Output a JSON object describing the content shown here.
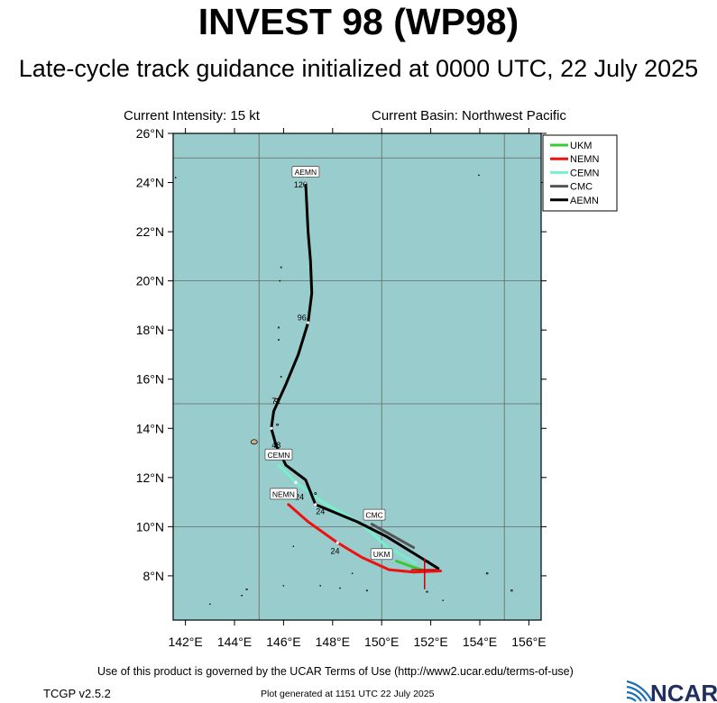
{
  "header": {
    "title": "INVEST 98 (WP98)",
    "subtitle": "Late-cycle track guidance initialized at 0000 UTC, 22 July 2025",
    "current_intensity": "Current Intensity: 15 kt",
    "current_basin": "Current Basin: Northwest Pacific"
  },
  "map": {
    "lat_ticks": [
      "8°N",
      "10°N",
      "12°N",
      "14°N",
      "16°N",
      "18°N",
      "20°N",
      "22°N",
      "24°N",
      "26°N"
    ],
    "lon_ticks": [
      "142°E",
      "144°E",
      "146°E",
      "148°E",
      "150°E",
      "152°E",
      "154°E",
      "156°E"
    ],
    "lat_range": [
      6.2,
      26
    ],
    "lon_range": [
      141.5,
      156.5
    ],
    "ocean_color": "#99cccc"
  },
  "legend": [
    {
      "name": "UKM",
      "color": "#33cc33"
    },
    {
      "name": "NEMN",
      "color": "#ee1111"
    },
    {
      "name": "CEMN",
      "color": "#77eecc"
    },
    {
      "name": "CMC",
      "color": "#555555"
    },
    {
      "name": "AEMN",
      "color": "#000000"
    }
  ],
  "tracks": {
    "AEMN": [
      [
        152.3,
        8.3
      ],
      [
        151.5,
        8.8
      ],
      [
        150.2,
        9.6
      ],
      [
        149,
        10.2
      ],
      [
        147.3,
        10.9
      ],
      [
        146.9,
        11.9
      ],
      [
        146.1,
        12.5
      ],
      [
        145.7,
        13.3
      ],
      [
        145.5,
        14.0
      ],
      [
        145.6,
        14.7
      ],
      [
        146.1,
        15.8
      ],
      [
        146.6,
        17.0
      ],
      [
        147.0,
        18.3
      ],
      [
        147.15,
        19.5
      ],
      [
        147.1,
        20.8
      ],
      [
        147.0,
        22.0
      ],
      [
        146.9,
        24.0
      ]
    ],
    "CEMN": [
      [
        151.4,
        8.5
      ],
      [
        150.2,
        9.2
      ],
      [
        149.2,
        10.1
      ],
      [
        147.6,
        11.0
      ],
      [
        146.5,
        11.8
      ],
      [
        145.8,
        12.5
      ]
    ],
    "NEMN": [
      [
        152.4,
        8.2
      ],
      [
        151.3,
        8.15
      ],
      [
        150.3,
        8.25
      ],
      [
        149.2,
        8.75
      ],
      [
        148.2,
        9.35
      ],
      [
        147.0,
        10.2
      ],
      [
        146.2,
        10.9
      ]
    ],
    "CMC": [
      [
        151.3,
        9.15
      ],
      [
        150.5,
        9.6
      ],
      [
        149.6,
        10.1
      ]
    ],
    "UKM": [
      [
        151.8,
        8.2
      ],
      [
        151.3,
        8.35
      ],
      [
        150.6,
        8.6
      ]
    ]
  },
  "track_labels": [
    {
      "text": "AEMN",
      "lon": 146.9,
      "lat": 24.4
    },
    {
      "text": "CEMN",
      "lon": 145.8,
      "lat": 12.9
    },
    {
      "text": "NEMN",
      "lon": 146.0,
      "lat": 11.3
    },
    {
      "text": "CMC",
      "lon": 149.7,
      "lat": 10.45
    },
    {
      "text": "UKM",
      "lon": 150.0,
      "lat": 8.85
    }
  ],
  "hour_labels": [
    {
      "text": "120",
      "lon": 146.7,
      "lat": 23.8
    },
    {
      "text": "96",
      "lon": 146.75,
      "lat": 18.4
    },
    {
      "text": "72",
      "lon": 145.7,
      "lat": 15.0
    },
    {
      "text": "48",
      "lon": 145.7,
      "lat": 13.2
    },
    {
      "text": "24",
      "lon": 146.65,
      "lat": 11.1
    },
    {
      "text": "24",
      "lon": 147.5,
      "lat": 10.5
    },
    {
      "text": "24",
      "lon": 148.1,
      "lat": 8.9
    }
  ],
  "footer": {
    "terms": "Use of this product is governed by the UCAR Terms of Use (http://www2.ucar.edu/terms-of-use)",
    "version": "TCGP v2.5.2",
    "generated": "Plot generated at 1151 UTC   22 July 2025",
    "logo_text": "NCAR"
  }
}
